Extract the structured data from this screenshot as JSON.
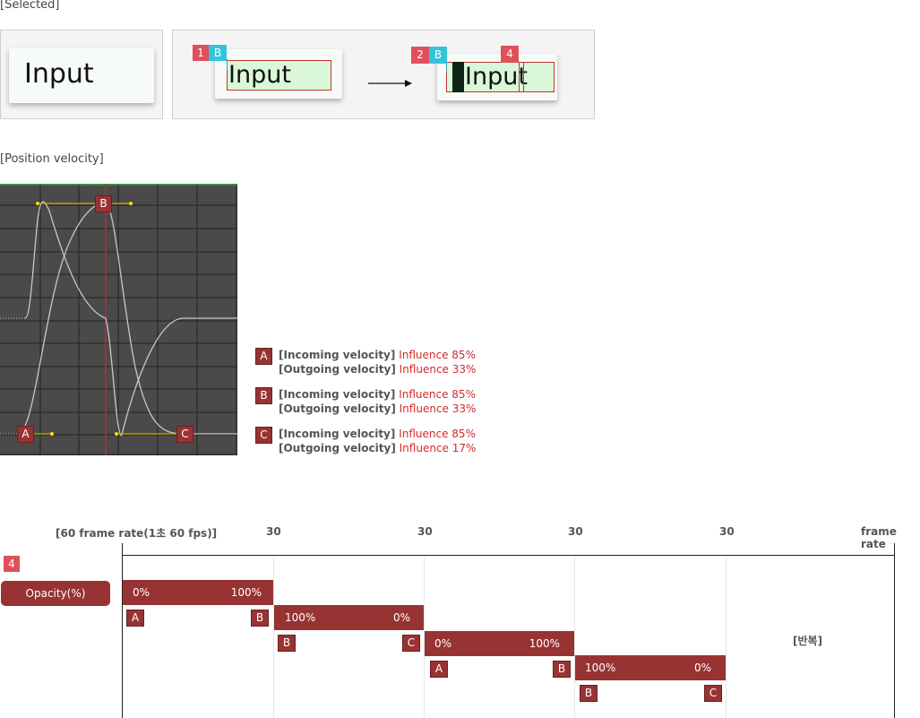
{
  "selected": {
    "title": "[Selected]",
    "input_text": "Input",
    "badges": {
      "one": "1",
      "b": "B",
      "two": "2",
      "b2": "B",
      "four": "4"
    }
  },
  "position_velocity": {
    "title": "[Position velocity]",
    "graph_markers": {
      "a": "A",
      "b": "B",
      "c": "C"
    },
    "legend": [
      {
        "key": "A",
        "incoming_label": "[Incoming velocity]",
        "incoming_value": "Influence 85%",
        "outgoing_label": "[Outgoing velocity]",
        "outgoing_value": "Influence 33%"
      },
      {
        "key": "B",
        "incoming_label": "[Incoming velocity]",
        "incoming_value": "Influence 85%",
        "outgoing_label": "[Outgoing velocity]",
        "outgoing_value": "Influence 33%"
      },
      {
        "key": "C",
        "incoming_label": "[Incoming velocity]",
        "incoming_value": "Influence 85%",
        "outgoing_label": "[Outgoing velocity]",
        "outgoing_value": "Influence 17%"
      }
    ]
  },
  "timeline": {
    "header_left": "[60 frame rate(1초 60 fps)]",
    "ticks": [
      "30",
      "30",
      "30",
      "30"
    ],
    "header_right": "frame rate",
    "badge": "4",
    "row_label": "Opacity(%)",
    "repeat_label": "[반복]",
    "segments": [
      {
        "start": "0%",
        "end": "100%",
        "from": "A",
        "to": "B"
      },
      {
        "start": "100%",
        "end": "0%",
        "from": "B",
        "to": "C"
      },
      {
        "start": "0%",
        "end": "100%",
        "from": "A",
        "to": "B"
      },
      {
        "start": "100%",
        "end": "0%",
        "from": "B",
        "to": "C"
      }
    ]
  },
  "colors": {
    "accent_red": "#983333",
    "badge_red": "#e0505a",
    "badge_cyan": "#35c3d9",
    "influence_red": "#d42a2a",
    "highlight_green": "#dbf7d9",
    "graph_bg": "#4a4a4a"
  }
}
